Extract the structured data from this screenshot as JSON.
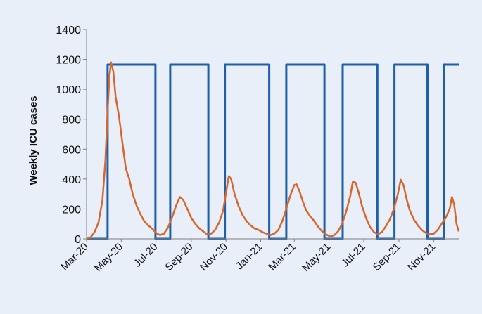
{
  "chart_data": {
    "type": "line",
    "title": "",
    "xlabel": "",
    "ylabel": "Weekly ICU cases",
    "ylim": [
      0,
      1400
    ],
    "yticks": [
      0,
      200,
      400,
      600,
      800,
      1000,
      1200,
      1400
    ],
    "xlim": [
      "2020-03-01",
      "2021-12-15"
    ],
    "x_tick_labels": [
      "Mar-20",
      "May-20",
      "Jul-20",
      "Sep-20",
      "Nov-20",
      "Jan-21",
      "Mar-21",
      "May-21",
      "Jul-21",
      "Sep-21",
      "Nov-21"
    ],
    "x_tick_dates": [
      "2020-03-01",
      "2020-05-01",
      "2020-07-01",
      "2020-09-01",
      "2020-11-01",
      "2021-01-01",
      "2021-03-01",
      "2021-05-01",
      "2021-07-01",
      "2021-09-01",
      "2021-11-01"
    ],
    "grid": false,
    "legend": "none",
    "series": [
      {
        "color": "#1f5fa8",
        "style": "step",
        "points": [
          [
            "2020-03-01",
            0
          ],
          [
            "2020-04-07",
            0
          ],
          [
            "2020-04-07",
            1165
          ],
          [
            "2020-06-30",
            1165
          ],
          [
            "2020-06-30",
            0
          ],
          [
            "2020-07-26",
            0
          ],
          [
            "2020-07-26",
            1165
          ],
          [
            "2020-10-01",
            1165
          ],
          [
            "2020-10-01",
            0
          ],
          [
            "2020-10-30",
            0
          ],
          [
            "2020-10-30",
            1165
          ],
          [
            "2021-01-16",
            1165
          ],
          [
            "2021-01-16",
            0
          ],
          [
            "2021-02-15",
            0
          ],
          [
            "2021-02-15",
            1165
          ],
          [
            "2021-04-23",
            1165
          ],
          [
            "2021-04-23",
            0
          ],
          [
            "2021-05-25",
            0
          ],
          [
            "2021-05-25",
            1165
          ],
          [
            "2021-07-25",
            1165
          ],
          [
            "2021-07-25",
            0
          ],
          [
            "2021-08-24",
            0
          ],
          [
            "2021-08-24",
            1165
          ],
          [
            "2021-10-21",
            1165
          ],
          [
            "2021-10-21",
            0
          ],
          [
            "2021-11-19",
            0
          ],
          [
            "2021-11-19",
            1165
          ],
          [
            "2021-12-15",
            1165
          ]
        ]
      },
      {
        "color": "#d8652a",
        "style": "line",
        "points": [
          [
            "2020-03-01",
            0
          ],
          [
            "2020-03-08",
            10
          ],
          [
            "2020-03-15",
            45
          ],
          [
            "2020-03-22",
            110
          ],
          [
            "2020-03-29",
            260
          ],
          [
            "2020-04-03",
            520
          ],
          [
            "2020-04-07",
            850
          ],
          [
            "2020-04-10",
            1080
          ],
          [
            "2020-04-13",
            1180
          ],
          [
            "2020-04-17",
            1120
          ],
          [
            "2020-04-21",
            950
          ],
          [
            "2020-04-27",
            820
          ],
          [
            "2020-05-03",
            640
          ],
          [
            "2020-05-09",
            470
          ],
          [
            "2020-05-15",
            400
          ],
          [
            "2020-05-21",
            300
          ],
          [
            "2020-05-27",
            230
          ],
          [
            "2020-06-03",
            170
          ],
          [
            "2020-06-10",
            120
          ],
          [
            "2020-06-17",
            90
          ],
          [
            "2020-06-24",
            70
          ],
          [
            "2020-07-01",
            40
          ],
          [
            "2020-07-08",
            25
          ],
          [
            "2020-07-15",
            35
          ],
          [
            "2020-07-22",
            75
          ],
          [
            "2020-07-29",
            140
          ],
          [
            "2020-08-05",
            220
          ],
          [
            "2020-08-12",
            280
          ],
          [
            "2020-08-18",
            260
          ],
          [
            "2020-08-25",
            200
          ],
          [
            "2020-09-01",
            140
          ],
          [
            "2020-09-08",
            100
          ],
          [
            "2020-09-15",
            70
          ],
          [
            "2020-09-22",
            50
          ],
          [
            "2020-09-29",
            30
          ],
          [
            "2020-10-06",
            35
          ],
          [
            "2020-10-13",
            60
          ],
          [
            "2020-10-20",
            110
          ],
          [
            "2020-10-27",
            190
          ],
          [
            "2020-11-02",
            330
          ],
          [
            "2020-11-06",
            420
          ],
          [
            "2020-11-10",
            400
          ],
          [
            "2020-11-16",
            300
          ],
          [
            "2020-11-23",
            220
          ],
          [
            "2020-11-30",
            160
          ],
          [
            "2020-12-07",
            120
          ],
          [
            "2020-12-14",
            90
          ],
          [
            "2020-12-21",
            70
          ],
          [
            "2020-12-28",
            60
          ],
          [
            "2021-01-04",
            45
          ],
          [
            "2021-01-11",
            35
          ],
          [
            "2021-01-18",
            25
          ],
          [
            "2021-01-25",
            35
          ],
          [
            "2021-02-01",
            60
          ],
          [
            "2021-02-08",
            120
          ],
          [
            "2021-02-15",
            200
          ],
          [
            "2021-02-22",
            290
          ],
          [
            "2021-03-01",
            360
          ],
          [
            "2021-03-05",
            365
          ],
          [
            "2021-03-10",
            320
          ],
          [
            "2021-03-16",
            250
          ],
          [
            "2021-03-22",
            190
          ],
          [
            "2021-03-29",
            150
          ],
          [
            "2021-04-05",
            120
          ],
          [
            "2021-04-12",
            80
          ],
          [
            "2021-04-19",
            50
          ],
          [
            "2021-04-26",
            30
          ],
          [
            "2021-05-03",
            15
          ],
          [
            "2021-05-10",
            25
          ],
          [
            "2021-05-17",
            50
          ],
          [
            "2021-05-24",
            100
          ],
          [
            "2021-05-31",
            180
          ],
          [
            "2021-06-07",
            280
          ],
          [
            "2021-06-12",
            385
          ],
          [
            "2021-06-17",
            375
          ],
          [
            "2021-06-22",
            310
          ],
          [
            "2021-06-28",
            220
          ],
          [
            "2021-07-05",
            140
          ],
          [
            "2021-07-12",
            80
          ],
          [
            "2021-07-19",
            45
          ],
          [
            "2021-07-26",
            30
          ],
          [
            "2021-08-02",
            45
          ],
          [
            "2021-08-09",
            85
          ],
          [
            "2021-08-16",
            130
          ],
          [
            "2021-08-23",
            200
          ],
          [
            "2021-08-30",
            300
          ],
          [
            "2021-09-04",
            395
          ],
          [
            "2021-09-09",
            360
          ],
          [
            "2021-09-14",
            270
          ],
          [
            "2021-09-20",
            190
          ],
          [
            "2021-09-27",
            130
          ],
          [
            "2021-10-04",
            90
          ],
          [
            "2021-10-11",
            60
          ],
          [
            "2021-10-18",
            40
          ],
          [
            "2021-10-25",
            30
          ],
          [
            "2021-11-01",
            35
          ],
          [
            "2021-11-08",
            60
          ],
          [
            "2021-11-15",
            100
          ],
          [
            "2021-11-22",
            140
          ],
          [
            "2021-11-29",
            200
          ],
          [
            "2021-12-03",
            280
          ],
          [
            "2021-12-07",
            230
          ],
          [
            "2021-12-11",
            100
          ],
          [
            "2021-12-15",
            50
          ]
        ]
      }
    ]
  }
}
